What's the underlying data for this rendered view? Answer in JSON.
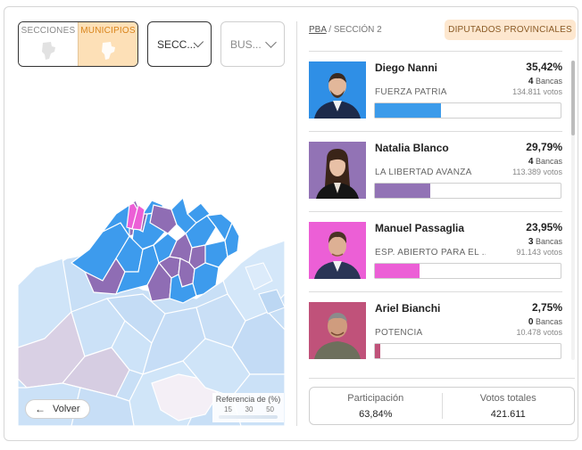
{
  "filters": {
    "secciones_label": "SECCIONES",
    "municipios_label": "MUNICIPIOS",
    "seccion_dropdown": "SECC...",
    "buscar_dropdown": "BUS..."
  },
  "map": {
    "back_label": "Volver",
    "legend_title": "Referencia de (%)",
    "legend_ticks": [
      "15",
      "30",
      "50"
    ]
  },
  "breadcrumb": {
    "root": "PBA",
    "separator": "/",
    "current": "SECCIÓN 2"
  },
  "category_badge": "DIPUTADOS PROVINCIALES",
  "candidates": [
    {
      "name": "Diego Nanni",
      "party": "FUERZA PATRIA",
      "percent": "35,42%",
      "bancas": "4",
      "bancas_label": "Bancas",
      "votes": "134.811 votos",
      "share": 0.3542,
      "color": "#3c9bea"
    },
    {
      "name": "Natalia Blanco",
      "party": "LA LIBERTAD AVANZA",
      "percent": "29,79%",
      "bancas": "4",
      "bancas_label": "Bancas",
      "votes": "113.389 votos",
      "share": 0.2979,
      "color": "#9273b5"
    },
    {
      "name": "Manuel Passaglia",
      "party": "ESP. ABIERTO PARA EL ...",
      "percent": "23,95%",
      "bancas": "3",
      "bancas_label": "Bancas",
      "votes": "91.143 votos",
      "share": 0.2395,
      "color": "#ec5fd6"
    },
    {
      "name": "Ariel Bianchi",
      "party": "POTENCIA",
      "percent": "2,75%",
      "bancas": "0",
      "bancas_label": "Bancas",
      "votes": "10.478 votos",
      "share": 0.0275,
      "color": "#c0527a"
    }
  ],
  "totals": {
    "participacion_label": "Participación",
    "participacion_value": "63,84%",
    "votos_label": "Votos totales",
    "votos_value": "421.611"
  }
}
